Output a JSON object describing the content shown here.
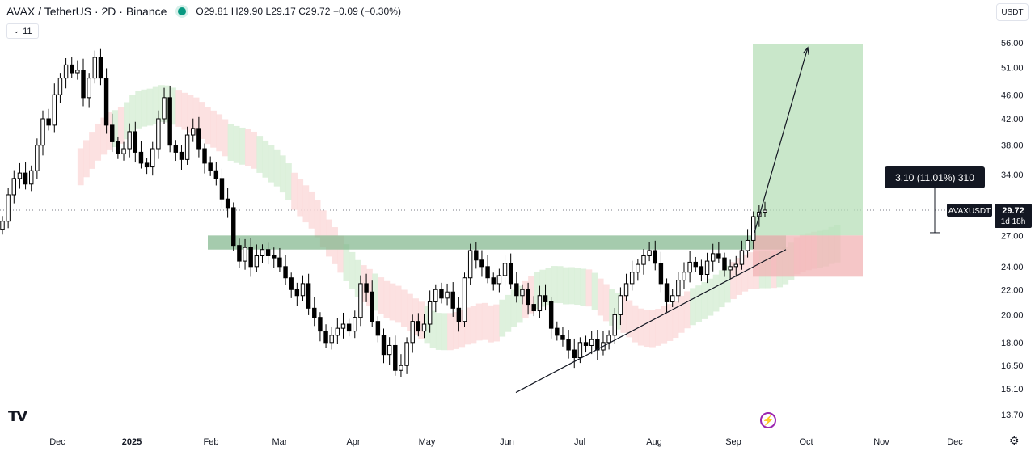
{
  "header": {
    "symbol": "AVAX / TetherUS · 2D · Binance",
    "ohlc": "O29.81  H29.90  L29.17  C29.72  −0.09 (−0.30%)"
  },
  "interval_badge": "11",
  "currency": "USDT",
  "measure_label": "3.10 (11.01%) 310",
  "price_tag": {
    "symbol": "AVAXUSDT",
    "price": "29.72",
    "countdown": "1d 18h"
  },
  "colors": {
    "up": "#ffffff",
    "down": "#000000",
    "zone": "#7fb58a",
    "target": "#b7dfb8",
    "stop": "#f1b3b4",
    "cloud_green": "#d8efd7",
    "cloud_red": "#fbdcdc"
  },
  "icons": [
    "tradingview-logo-icon",
    "flash-icon",
    "gear-icon",
    "chevron-icon"
  ],
  "chart_data": {
    "type": "candlestick",
    "title": "AVAX / TetherUS · 2D · Binance",
    "y_scale": "log",
    "ylim": [
      13.7,
      56.0
    ],
    "y_ticks": [
      "56.00",
      "51.00",
      "46.00",
      "42.00",
      "38.00",
      "34.00",
      "27.00",
      "24.00",
      "22.00",
      "20.00",
      "18.00",
      "16.50",
      "15.10",
      "13.70"
    ],
    "x_ticks": [
      "Dec",
      "2025",
      "Feb",
      "Mar",
      "Apr",
      "May",
      "Jun",
      "Jul",
      "Aug",
      "Sep",
      "Oct",
      "Nov",
      "Dec"
    ],
    "current_price": 29.72,
    "support_zone": [
      25.6,
      27.0
    ],
    "long_position": {
      "entry": 27.0,
      "stop": 23.1,
      "target": 55.8
    },
    "trendline": {
      "from": 14.9,
      "to": 25.6
    },
    "arrow_target": 55.0,
    "closes": [
      28.5,
      31.5,
      33.5,
      34.2,
      32.8,
      34.5,
      38.0,
      42.0,
      41.0,
      46.0,
      49.0,
      51.5,
      50.0,
      50.5,
      45.5,
      49.0,
      53.0,
      49.0,
      41.0,
      38.5,
      36.8,
      37.5,
      40.0,
      37.0,
      35.5,
      35.0,
      37.5,
      42.0,
      45.5,
      38.0,
      37.0,
      36.0,
      39.5,
      40.5,
      37.5,
      35.5,
      34.5,
      33.5,
      31.0,
      30.0,
      26.0,
      24.5,
      25.8,
      24.0,
      25.0,
      25.6,
      25.0,
      24.8,
      24.0,
      23.0,
      22.0,
      21.5,
      22.5,
      20.5,
      19.8,
      18.8,
      18.0,
      18.5,
      19.0,
      19.3,
      18.8,
      19.8,
      22.5,
      21.8,
      19.5,
      18.5,
      17.2,
      17.8,
      16.2,
      16.5,
      18.0,
      19.5,
      18.8,
      19.3,
      21.0,
      22.0,
      21.3,
      21.8,
      20.5,
      19.5,
      23.0,
      25.5,
      24.6,
      24.0,
      23.0,
      22.5,
      23.2,
      24.3,
      22.5,
      21.5,
      22.0,
      20.8,
      20.3,
      21.5,
      21.0,
      19.0,
      18.5,
      18.2,
      17.5,
      17.0,
      18.0,
      17.8,
      18.2,
      17.5,
      18.0,
      18.5,
      20.0,
      21.5,
      22.5,
      23.5,
      24.2,
      25.0,
      25.5,
      24.3,
      22.5,
      21.0,
      21.5,
      22.8,
      23.5,
      24.4,
      24.0,
      23.3,
      24.5,
      25.2,
      24.8,
      23.7,
      24.0,
      24.2,
      25.5,
      26.5,
      29.0,
      29.5,
      29.72
    ]
  }
}
